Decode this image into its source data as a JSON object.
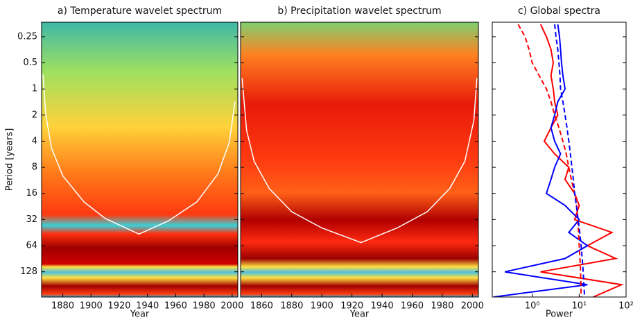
{
  "chart_data": [
    {
      "type": "heatmap",
      "title": "a) Temperature wavelet spectrum",
      "x_label": "Year",
      "y_label": "Period [years]",
      "xlim": [
        1865,
        2004
      ],
      "xticks": [
        1880,
        1900,
        1920,
        1940,
        1960,
        1980,
        2000
      ],
      "ylim": [
        0.17,
        250
      ],
      "yticks": [
        0.25,
        0.5,
        1,
        2,
        4,
        8,
        16,
        32,
        64,
        128
      ],
      "y_log": true,
      "y_inverted": true,
      "coi": {
        "color": "#ffffff",
        "x": [
          1866,
          1868,
          1872,
          1880,
          1895,
          1910,
          1934,
          1955,
          1975,
          1990,
          1998,
          2002
        ],
        "values": [
          0.68,
          2,
          4.8,
          10,
          20,
          31,
          47,
          33,
          20,
          9.5,
          4.1,
          1.4
        ]
      }
    },
    {
      "type": "heatmap",
      "title": "b) Precipitation wavelet spectrum",
      "x_label": "Year",
      "xlim": [
        1846,
        2004
      ],
      "xticks": [
        1860,
        1880,
        1900,
        1920,
        1940,
        1960,
        1980,
        2000
      ],
      "coi": {
        "color": "#ffffff",
        "x": [
          1847,
          1850,
          1855,
          1865,
          1880,
          1900,
          1926,
          1950,
          1970,
          1985,
          1995,
          2001,
          2003
        ],
        "values": [
          0.75,
          3,
          6.8,
          14,
          26,
          40,
          59,
          40,
          26,
          14,
          6.8,
          2.3,
          0.75
        ]
      }
    },
    {
      "type": "line",
      "title": "c) Global spectra",
      "x_label": "Power",
      "x_log": true,
      "xlim": [
        0.14,
        100
      ],
      "xticks": [
        {
          "value": 1,
          "label": "10⁰"
        },
        {
          "value": 10,
          "label": "10¹"
        },
        {
          "value": 100,
          "label": "10²"
        }
      ],
      "y": [
        0.18,
        0.25,
        0.35,
        0.5,
        0.7,
        1,
        1.4,
        2,
        2.8,
        4,
        5.6,
        8,
        11,
        16,
        22,
        32,
        45,
        64,
        90,
        128,
        180,
        250
      ],
      "series": [
        {
          "color": "#ff0000",
          "dash": false,
          "values": [
            1.5,
            2,
            2.5,
            2.8,
            2.5,
            2.8,
            3,
            3.5,
            2.5,
            1.8,
            3,
            6,
            5,
            8,
            10,
            8,
            50,
            15,
            60,
            1.5,
            80,
            20
          ]
        },
        {
          "color": "#0000ff",
          "dash": false,
          "values": [
            3.5,
            3.8,
            4,
            4.2,
            4.5,
            5,
            3.5,
            3,
            2.5,
            3,
            4,
            3,
            2.5,
            2,
            5,
            10,
            6,
            15,
            5,
            0.26,
            15,
            0.15
          ]
        },
        {
          "color": "#ff0000",
          "dash": true,
          "values": [
            0.5,
            0.7,
            0.85,
            1,
            1.4,
            2,
            2.5,
            3,
            3.7,
            4.5,
            5.3,
            6,
            6.8,
            8,
            8.8,
            9.3,
            9.7,
            10,
            10.4,
            10.7,
            10.9,
            11
          ]
        },
        {
          "color": "#0000ff",
          "dash": true,
          "values": [
            3,
            3.2,
            3.5,
            3.7,
            3.9,
            4,
            4.5,
            5,
            5.5,
            6,
            6.5,
            7,
            7.5,
            8,
            8.7,
            9.5,
            10.3,
            11,
            11.6,
            12.2,
            12.6,
            13
          ]
        }
      ]
    }
  ]
}
